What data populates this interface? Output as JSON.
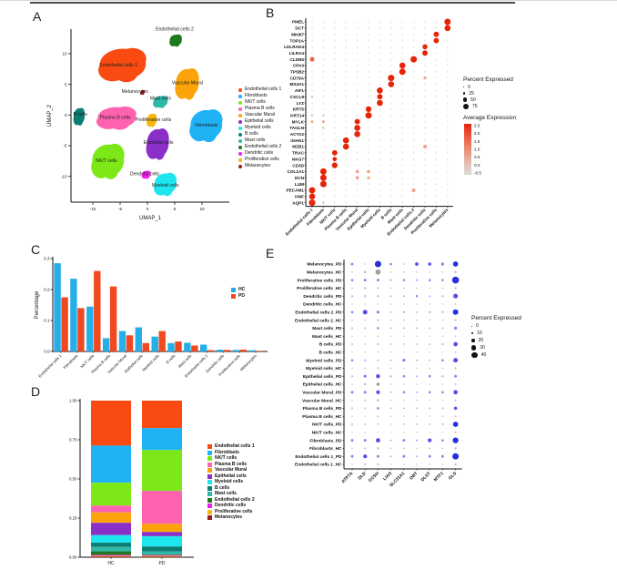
{
  "panels": {
    "a": {
      "label": "A"
    },
    "b": {
      "label": "B"
    },
    "c": {
      "label": "C"
    },
    "d": {
      "label": "D"
    },
    "e": {
      "label": "E"
    }
  },
  "cell_types": [
    {
      "name": "Endothelial cells 1",
      "color": "#F94B11"
    },
    {
      "name": "Fibroblasts",
      "color": "#1FB3F5"
    },
    {
      "name": "NK/T cells",
      "color": "#7CE817"
    },
    {
      "name": "Plasma B cells",
      "color": "#FF63B0"
    },
    {
      "name": "Vascular Mural",
      "color": "#FCA309"
    },
    {
      "name": "Epithelial cells",
      "color": "#8B2FC9"
    },
    {
      "name": "Myeloid cells",
      "color": "#1EE6EE"
    },
    {
      "name": "B cells",
      "color": "#0B7D72"
    },
    {
      "name": "Mast cells",
      "color": "#2FB8A8"
    },
    {
      "name": "Endothelial cells 2",
      "color": "#1E7A1E"
    },
    {
      "name": "Dendritic cells",
      "color": "#F21DF2"
    },
    {
      "name": "Proliferative cells",
      "color": "#F5B711"
    },
    {
      "name": "Melanocytes",
      "color": "#9E1A1A"
    }
  ],
  "chart_data": [
    {
      "id": "A",
      "type": "scatter",
      "subtype": "umap-clusters",
      "xlabel": "UMAP_1",
      "ylabel": "UMAP_2",
      "xticks": [
        -10,
        -5,
        0,
        5,
        10
      ],
      "yticks": [
        -10,
        -5,
        0,
        5,
        10
      ],
      "xlim": [
        -14,
        15
      ],
      "ylim": [
        -14.2,
        14
      ],
      "clusters": [
        {
          "name": "Endothelial cells 1",
          "cx": -4.5,
          "cy": 8.3,
          "rx": 4.2,
          "ry": 2.5,
          "lx": -5.3,
          "ly": 7.9
        },
        {
          "name": "Endothelial cells 2",
          "cx": 5.2,
          "cy": 12.2,
          "rx": 1.1,
          "ry": 0.9,
          "lx": 5.0,
          "ly": 13.8
        },
        {
          "name": "Vascular Mural",
          "cx": 7.3,
          "cy": 5.2,
          "rx": 2.1,
          "ry": 2.3,
          "lx": 7.3,
          "ly": 5.0
        },
        {
          "name": "Melanocytes",
          "cx": -0.9,
          "cy": 3.7,
          "rx": 0.4,
          "ry": 0.35,
          "lx": -2.3,
          "ly": 3.6
        },
        {
          "name": "Mast cells",
          "cx": 2.4,
          "cy": 2.2,
          "rx": 1.3,
          "ry": 0.9,
          "lx": 2.4,
          "ly": 2.5
        },
        {
          "name": "B cells",
          "cx": -12.5,
          "cy": -0.2,
          "rx": 1.0,
          "ry": 1.3,
          "lx": -12.3,
          "ly": -0.1
        },
        {
          "name": "Plasma B cells",
          "cx": -5.6,
          "cy": -0.4,
          "rx": 3.5,
          "ry": 1.7,
          "lx": -5.9,
          "ly": -0.6
        },
        {
          "name": "Proliferative cells",
          "cx": 0.8,
          "cy": -0.8,
          "rx": 0.9,
          "ry": 1.0,
          "lx": 1.1,
          "ly": -1.0
        },
        {
          "name": "Fibroblasts",
          "cx": 10.8,
          "cy": -1.6,
          "rx": 2.9,
          "ry": 2.4,
          "lx": 10.8,
          "ly": -1.9
        },
        {
          "name": "Epithelial cells",
          "cx": 1.9,
          "cy": -4.6,
          "rx": 2.0,
          "ry": 2.3,
          "lx": 2.0,
          "ly": -4.7
        },
        {
          "name": "NK/T cells",
          "cx": -7.2,
          "cy": -7.4,
          "rx": 2.9,
          "ry": 2.6,
          "lx": -7.5,
          "ly": -7.7
        },
        {
          "name": "Dendritic cells",
          "cx": -0.2,
          "cy": -9.7,
          "rx": 0.8,
          "ry": 0.6,
          "lx": -0.5,
          "ly": -9.8
        },
        {
          "name": "Myeloid cells",
          "cx": 3.3,
          "cy": -11.2,
          "rx": 2.0,
          "ry": 1.7,
          "lx": 3.3,
          "ly": -11.7
        }
      ]
    },
    {
      "id": "B",
      "type": "dotplot",
      "subtype": "marker-genes",
      "genes": [
        "PMEL",
        "DCT",
        "MKI67",
        "TOP2A",
        "LDLRAD4",
        "LILRA4",
        "CLDN5",
        "CPA3",
        "TPSB2",
        "CD79A",
        "MS4A1",
        "AIF1",
        "CXCL8",
        "LYZ",
        "KRT5",
        "KRT14",
        "MYLK",
        "TAGLN",
        "ACTA2",
        "IGHG1",
        "MZB1",
        "TRAC",
        "NKG7",
        "CD3D",
        "COL1A1",
        "DCN",
        "LUM",
        "PECAM1",
        "VWF",
        "AQP1"
      ],
      "columns": [
        "Endothelial cells 1",
        "Fibroblasts",
        "NK/T cells",
        "Plasma B cells",
        "Vascular Mural",
        "Epithelial cells",
        "Myeloid cells",
        "B cells",
        "Mast cells",
        "Endothelial cells 2",
        "Dendritic cells",
        "Proliferative cells",
        "Melanocytes"
      ],
      "legend_percent": {
        "title": "Percent Expressed",
        "values": [
          0,
          25,
          50,
          75
        ]
      },
      "legend_expression": {
        "title": "Average Expression",
        "ticks": [
          2.5,
          2.0,
          1.5,
          1.0,
          0.5,
          0.0,
          -0.5
        ],
        "high_color": "#E62408",
        "low_color": "#D9D9D9"
      },
      "background": {
        "percent": 4,
        "expression": 0.1
      },
      "dots": {
        "PMEL": [
          [
            12,
            75,
            2.5
          ]
        ],
        "DCT": [
          [
            12,
            70,
            2.5
          ]
        ],
        "MKI67": [
          [
            11,
            60,
            2.5
          ]
        ],
        "TOP2A": [
          [
            11,
            60,
            2.5
          ]
        ],
        "LDLRAD4": [
          [
            10,
            55,
            2.2
          ]
        ],
        "LILRA4": [
          [
            10,
            60,
            2.5
          ]
        ],
        "CLDN5": [
          [
            9,
            75,
            2.5
          ],
          [
            0,
            50,
            1.3
          ]
        ],
        "CPA3": [
          [
            8,
            70,
            2.5
          ]
        ],
        "TPSB2": [
          [
            8,
            75,
            2.5
          ]
        ],
        "CD79A": [
          [
            7,
            75,
            2.5
          ],
          [
            10,
            25,
            0.8
          ]
        ],
        "MS4A1": [
          [
            7,
            70,
            2.5
          ]
        ],
        "AIF1": [
          [
            6,
            70,
            2.5
          ]
        ],
        "CXCL8": [
          [
            6,
            60,
            2.2
          ],
          [
            0,
            15,
            0.4
          ]
        ],
        "LYZ": [
          [
            6,
            70,
            2.5
          ]
        ],
        "KRT5": [
          [
            5,
            65,
            2.5
          ]
        ],
        "KRT14": [
          [
            5,
            75,
            2.5
          ],
          [
            0,
            15,
            0.4
          ],
          [
            1,
            15,
            0.4
          ]
        ],
        "MYLK": [
          [
            4,
            60,
            2.4
          ],
          [
            0,
            20,
            0.5
          ],
          [
            1,
            20,
            0.5
          ]
        ],
        "TAGLN": [
          [
            4,
            70,
            2.5
          ],
          [
            1,
            15,
            0.4
          ]
        ],
        "ACTA2": [
          [
            4,
            70,
            2.5
          ]
        ],
        "IGHG1": [
          [
            3,
            70,
            2.5
          ]
        ],
        "MZB1": [
          [
            3,
            70,
            2.5
          ],
          [
            10,
            35,
            0.6
          ]
        ],
        "TRAC": [
          [
            2,
            60,
            2.4
          ]
        ],
        "NKG7": [
          [
            2,
            45,
            2.3
          ]
        ],
        "CD3D": [
          [
            2,
            65,
            2.5
          ]
        ],
        "COL1A1": [
          [
            1,
            75,
            2.5
          ],
          [
            4,
            30,
            0.5
          ],
          [
            5,
            30,
            0.5
          ]
        ],
        "DCN": [
          [
            1,
            75,
            2.5
          ],
          [
            4,
            30,
            0.5
          ],
          [
            5,
            25,
            0.5
          ]
        ],
        "LUM": [
          [
            1,
            75,
            2.5
          ]
        ],
        "PECAM1": [
          [
            0,
            75,
            2.5
          ],
          [
            9,
            35,
            0.8
          ]
        ],
        "VWF": [
          [
            0,
            70,
            2.5
          ]
        ],
        "AQP1": [
          [
            0,
            75,
            2.5
          ],
          [
            1,
            15,
            0.3
          ]
        ]
      }
    },
    {
      "id": "C",
      "type": "bar",
      "ylabel": "Percentage",
      "yticks": [
        0.0,
        0.1,
        0.2,
        0.3
      ],
      "ylim": [
        0,
        0.3
      ],
      "categories": [
        "Endothelial cells 1",
        "Fibroblasts",
        "NK/T cells",
        "Plasma B cells",
        "Vascular Mural",
        "Epithelial cells",
        "Myeloid cells",
        "B cells",
        "Mast cells",
        "Endothelial cells 2",
        "Dendritic cells",
        "Proliferative cells",
        "Melanocytes"
      ],
      "series": [
        {
          "name": "HC",
          "color": "#25AEE8",
          "values": [
            0.285,
            0.235,
            0.145,
            0.043,
            0.066,
            0.078,
            0.048,
            0.027,
            0.028,
            0.022,
            0.006,
            0.005,
            0.004
          ]
        },
        {
          "name": "PD",
          "color": "#F1481F",
          "values": [
            0.175,
            0.14,
            0.26,
            0.21,
            0.052,
            0.027,
            0.066,
            0.032,
            0.019,
            0.004,
            0.005,
            0.006,
            0.002
          ]
        }
      ]
    },
    {
      "id": "D",
      "type": "stacked-bar",
      "yticks": [
        0.0,
        0.25,
        0.5,
        0.75,
        1.0
      ],
      "categories": [
        "HC",
        "PD"
      ],
      "stack_order_note": "cell_types order, Endothelial cells 1 at top, Melanocytes at bottom",
      "values": {
        "HC": [
          0.285,
          0.235,
          0.145,
          0.043,
          0.066,
          0.078,
          0.048,
          0.027,
          0.028,
          0.022,
          0.006,
          0.005,
          0.004
        ],
        "PD": [
          0.175,
          0.14,
          0.26,
          0.21,
          0.052,
          0.027,
          0.066,
          0.032,
          0.019,
          0.004,
          0.005,
          0.006,
          0.002
        ]
      }
    },
    {
      "id": "E",
      "type": "dotplot",
      "subtype": "cuproptosis-genes",
      "genes": [
        "ATP7A",
        "DLD",
        "GCSH",
        "LIAS",
        "SLC31A1",
        "DBT",
        "DLST",
        "MTF1",
        "GLS"
      ],
      "legend_percent": {
        "title": "Percent Expressed",
        "values": [
          0,
          10,
          20,
          30,
          40
        ]
      },
      "pd_color": "#3333DF",
      "hc_color": "#BDBDBD",
      "rows": [
        {
          "name": "Melanocytes_PD",
          "group": "PD",
          "values": [
            12,
            4,
            38,
            10,
            4,
            18,
            16,
            14,
            30
          ]
        },
        {
          "name": "Melanocytes_HC",
          "group": "HC",
          "values": [
            5,
            12,
            30,
            4,
            4,
            4,
            4,
            4,
            10
          ]
        },
        {
          "name": "Proliferative cells_PD",
          "group": "PD",
          "values": [
            10,
            12,
            12,
            8,
            10,
            8,
            10,
            10,
            42
          ]
        },
        {
          "name": "Proliferative cells_HC",
          "group": "HC",
          "values": [
            4,
            10,
            8,
            4,
            4,
            4,
            4,
            4,
            10
          ]
        },
        {
          "name": "Dendritic cells_PD",
          "group": "PD",
          "values": [
            8,
            8,
            8,
            6,
            6,
            9,
            6,
            8,
            26
          ]
        },
        {
          "name": "Dendritic cells_HC",
          "group": "HC",
          "values": [
            3,
            3,
            4,
            3,
            3,
            3,
            3,
            3,
            5
          ]
        },
        {
          "name": "Endothelial cells 2_PD",
          "group": "PD",
          "values": [
            10,
            26,
            14,
            6,
            8,
            6,
            8,
            8,
            32
          ]
        },
        {
          "name": "Endothelial cells 2_HC",
          "group": "HC",
          "values": [
            3,
            4,
            8,
            4,
            4,
            4,
            4,
            4,
            8
          ]
        },
        {
          "name": "Mast cells_PD",
          "group": "PD",
          "values": [
            8,
            6,
            10,
            6,
            6,
            6,
            6,
            6,
            14
          ]
        },
        {
          "name": "Mast cells_HC",
          "group": "HC",
          "values": [
            3,
            3,
            4,
            3,
            3,
            3,
            3,
            3,
            5
          ]
        },
        {
          "name": "B cells_PD",
          "group": "PD",
          "values": [
            6,
            5,
            6,
            5,
            5,
            5,
            6,
            8,
            24
          ]
        },
        {
          "name": "B cells_HC",
          "group": "HC",
          "values": [
            3,
            3,
            4,
            3,
            3,
            3,
            3,
            3,
            6
          ]
        },
        {
          "name": "Myeloid cells_PD",
          "group": "PD",
          "values": [
            10,
            8,
            6,
            6,
            14,
            6,
            6,
            10,
            26
          ]
        },
        {
          "name": "Myeloid cells_HC",
          "group": "HC",
          "values": [
            4,
            5,
            6,
            4,
            4,
            4,
            4,
            4,
            8
          ]
        },
        {
          "name": "Epithelial cells_PD",
          "group": "PD",
          "values": [
            6,
            14,
            22,
            8,
            10,
            6,
            10,
            8,
            12
          ]
        },
        {
          "name": "Epithelial cells_HC",
          "group": "HC",
          "values": [
            4,
            10,
            16,
            4,
            4,
            4,
            4,
            4,
            6
          ]
        },
        {
          "name": "Vascular Mural_PD",
          "group": "PD",
          "values": [
            12,
            12,
            20,
            6,
            10,
            6,
            10,
            10,
            24
          ]
        },
        {
          "name": "Vascular Mural_HC",
          "group": "HC",
          "values": [
            4,
            6,
            10,
            4,
            4,
            4,
            4,
            4,
            6
          ]
        },
        {
          "name": "Plasma B cells_PD",
          "group": "PD",
          "values": [
            6,
            5,
            10,
            5,
            5,
            5,
            6,
            6,
            16
          ]
        },
        {
          "name": "Plasma B cells_HC",
          "group": "HC",
          "values": [
            4,
            4,
            6,
            4,
            4,
            4,
            4,
            4,
            6
          ]
        },
        {
          "name": "NK/T cells_PD",
          "group": "PD",
          "values": [
            6,
            5,
            5,
            4,
            5,
            5,
            5,
            6,
            30
          ]
        },
        {
          "name": "NK/T cells_HC",
          "group": "HC",
          "values": [
            3,
            3,
            3,
            3,
            3,
            3,
            3,
            3,
            8
          ]
        },
        {
          "name": "Fibroblasts_PD",
          "group": "PD",
          "values": [
            12,
            12,
            24,
            6,
            12,
            8,
            20,
            10,
            34
          ]
        },
        {
          "name": "Fibroblasts_HC",
          "group": "HC",
          "values": [
            4,
            8,
            10,
            5,
            5,
            4,
            6,
            4,
            10
          ]
        },
        {
          "name": "Endothelial cells 1_PD",
          "group": "PD",
          "values": [
            12,
            20,
            12,
            6,
            12,
            6,
            12,
            12,
            38
          ]
        },
        {
          "name": "Endothelial cells 1_HC",
          "group": "HC",
          "values": [
            4,
            8,
            8,
            4,
            4,
            4,
            4,
            4,
            10
          ]
        }
      ]
    }
  ]
}
